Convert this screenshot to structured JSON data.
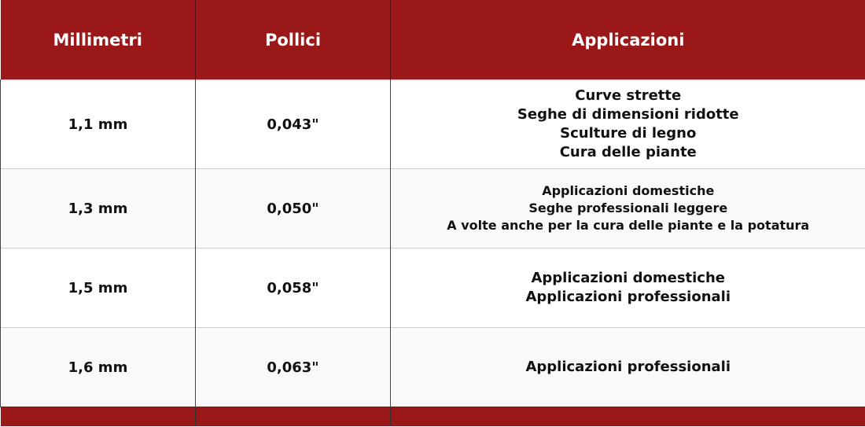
{
  "header": {
    "col1": "Millimetri",
    "col2": "Pollici",
    "col3": "Applicazioni"
  },
  "rows": [
    {
      "mm": "1,1 mm",
      "inch": "0,043\"",
      "applications": [
        "Curve strette",
        "Seghe di dimensioni ridotte",
        "Sculture di legno",
        "Cura delle piante"
      ]
    },
    {
      "mm": "1,3 mm",
      "inch": "0,050\"",
      "applications": [
        "Applicazioni domestiche",
        "Seghe professionali leggere",
        "A volte anche per la cura delle piante e la potatura"
      ]
    },
    {
      "mm": "1,5 mm",
      "inch": "0,058\"",
      "applications": [
        "Applicazioni domestiche",
        "Applicazioni professionali"
      ]
    },
    {
      "mm": "1,6 mm",
      "inch": "0,063\"",
      "applications": [
        "Applicazioni professionali"
      ]
    }
  ],
  "colors": {
    "header": "#9a1818",
    "alt_row": "#faf8f9"
  }
}
